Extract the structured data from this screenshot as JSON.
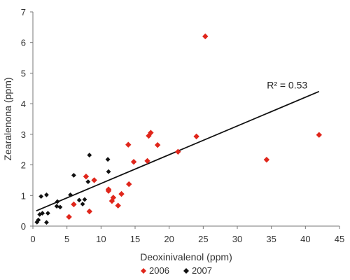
{
  "chart_data": {
    "type": "scatter",
    "title": "",
    "xlabel": "Deoxinivalenol (ppm)",
    "ylabel": "Zearalenona (ppm)",
    "xlim": [
      0,
      45
    ],
    "ylim": [
      0,
      7
    ],
    "xticks": [
      0,
      5,
      10,
      15,
      20,
      25,
      30,
      35,
      40,
      45
    ],
    "yticks": [
      0,
      1,
      2,
      3,
      4,
      5,
      6,
      7
    ],
    "grid": false,
    "legend_position": "bottom",
    "annotation": {
      "text": "R² = 0.53",
      "x": 40.5,
      "y": 4.4
    },
    "trendline": {
      "x": [
        0.5,
        42
      ],
      "y": [
        0.5,
        4.4
      ]
    },
    "series": [
      {
        "name": "2006",
        "color": "#e0261b",
        "marker": "diamond",
        "points": [
          [
            25.3,
            6.2
          ],
          [
            42.0,
            2.98
          ],
          [
            34.3,
            2.17
          ],
          [
            24.0,
            2.93
          ],
          [
            21.3,
            2.43
          ],
          [
            18.3,
            2.65
          ],
          [
            17.3,
            3.05
          ],
          [
            17.0,
            2.95
          ],
          [
            16.8,
            2.13
          ],
          [
            14.8,
            2.1
          ],
          [
            14.0,
            2.66
          ],
          [
            14.1,
            1.37
          ],
          [
            13.0,
            1.05
          ],
          [
            12.5,
            0.67
          ],
          [
            11.8,
            0.93
          ],
          [
            11.6,
            0.82
          ],
          [
            11.1,
            1.15
          ],
          [
            11.1,
            1.2
          ],
          [
            9.0,
            1.5
          ],
          [
            7.8,
            1.62
          ],
          [
            8.3,
            0.48
          ],
          [
            6.0,
            0.71
          ],
          [
            5.3,
            0.3
          ]
        ]
      },
      {
        "name": "2007",
        "color": "#111111",
        "marker": "diamond",
        "points": [
          [
            8.3,
            2.32
          ],
          [
            11.0,
            2.18
          ],
          [
            11.1,
            1.78
          ],
          [
            6.0,
            1.66
          ],
          [
            8.1,
            1.45
          ],
          [
            5.5,
            1.02
          ],
          [
            2.0,
            1.02
          ],
          [
            1.2,
            0.97
          ],
          [
            3.6,
            0.8
          ],
          [
            4.0,
            0.62
          ],
          [
            3.5,
            0.65
          ],
          [
            6.8,
            0.85
          ],
          [
            7.6,
            0.87
          ],
          [
            7.3,
            0.72
          ],
          [
            2.2,
            0.42
          ],
          [
            1.4,
            0.42
          ],
          [
            1.0,
            0.38
          ],
          [
            0.8,
            0.2
          ],
          [
            0.6,
            0.13
          ],
          [
            2.0,
            0.12
          ]
        ]
      }
    ]
  }
}
